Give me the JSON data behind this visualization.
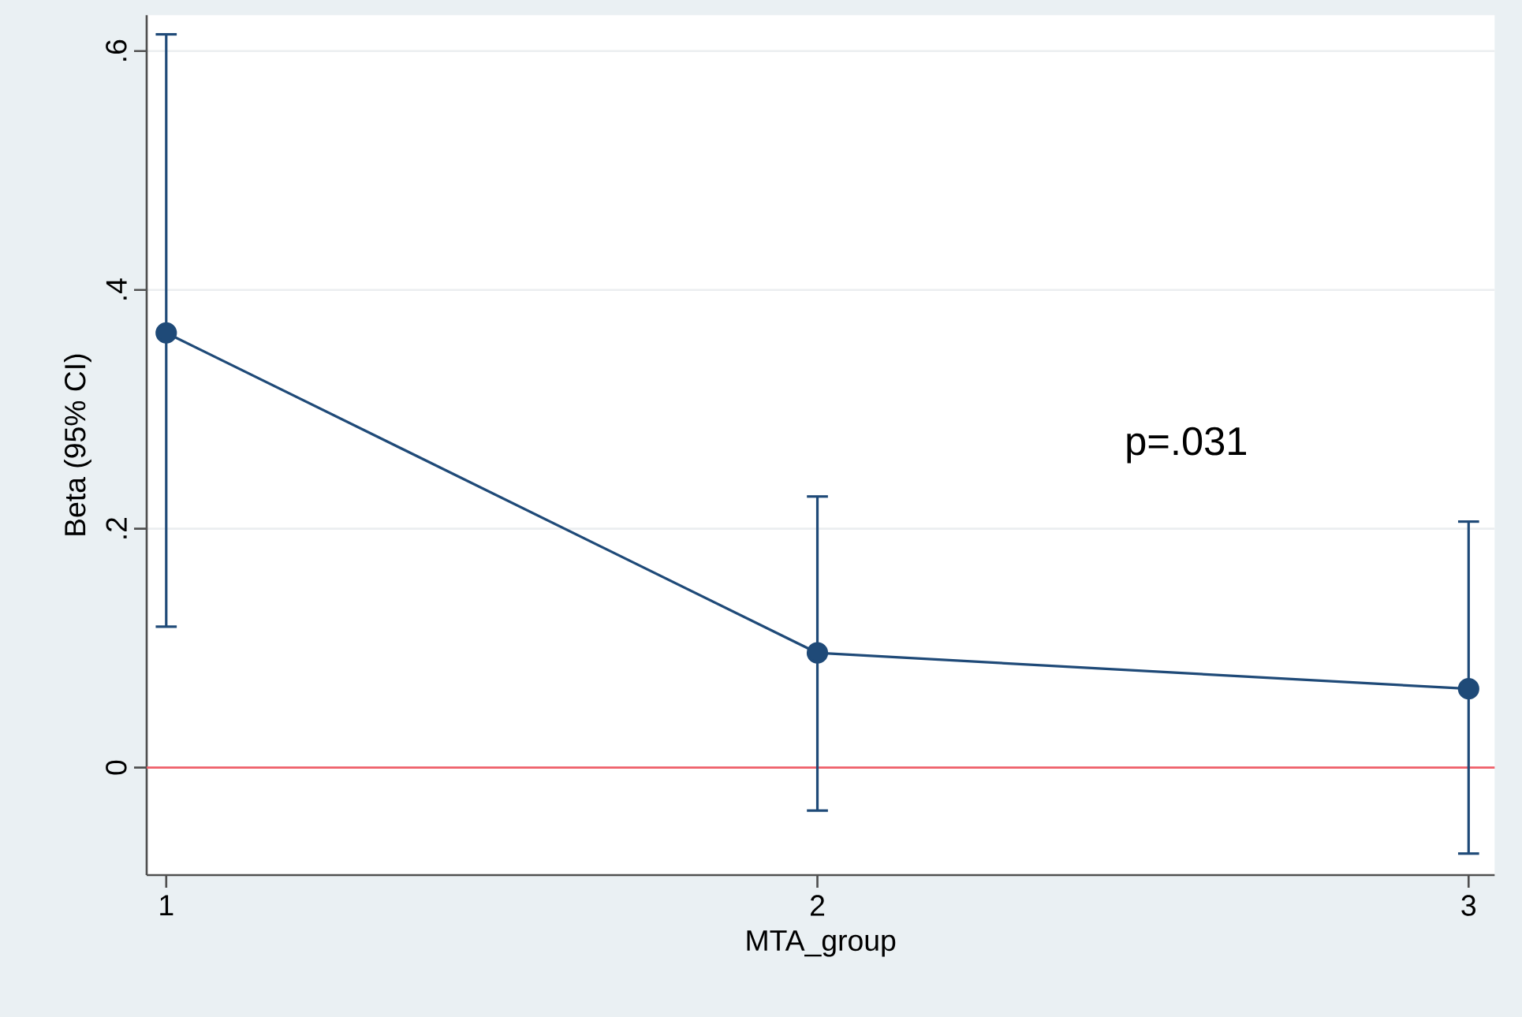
{
  "chart_data": {
    "type": "line",
    "xlabel": "MTA_group",
    "ylabel": "Beta (95% CI)",
    "x": [
      1,
      2,
      3
    ],
    "series": [
      {
        "color": "#1f4a78",
        "values": [
          0.364,
          0.096,
          0.066
        ],
        "errors": [
          [
            0.118,
            0.614
          ],
          [
            -0.036,
            0.227
          ],
          [
            -0.072,
            0.206
          ]
        ]
      }
    ],
    "xlim": [
      0.97,
      3.04
    ],
    "ylim": [
      -0.09,
      0.63
    ],
    "xticks": [
      1,
      2,
      3
    ],
    "yticks": [
      0,
      {
        "value": 0.2,
        "label": ".2"
      },
      {
        "value": 0.4,
        "label": ".4"
      },
      {
        "value": 0.6,
        "label": ".6"
      }
    ],
    "ref_lines": [
      {
        "axis": "y",
        "value": 0,
        "color": "#f0606a"
      }
    ],
    "annotations": [
      "p=.031"
    ],
    "grid": "y",
    "marker": "circle",
    "line_style": "solid"
  }
}
